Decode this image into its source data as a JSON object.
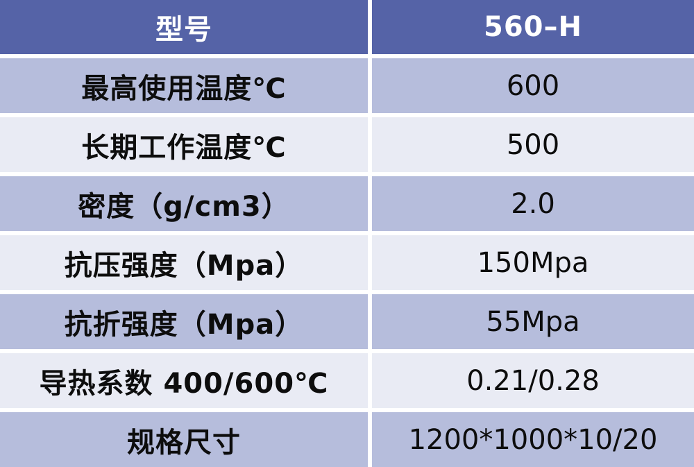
{
  "chart_data": {
    "type": "table",
    "title": "",
    "columns": [
      "型号",
      "560–H"
    ],
    "rows": [
      [
        "最高使用温度℃",
        "600"
      ],
      [
        "长期工作温度℃",
        "500"
      ],
      [
        "密度（g/cm3）",
        "2.0"
      ],
      [
        "抗压强度（Mpa）",
        "150Mpa"
      ],
      [
        "抗折强度（Mpa）",
        "55Mpa"
      ],
      [
        "导热系数 400/600℃",
        "0.21/0.28"
      ],
      [
        "规格尺寸",
        "1200*1000*10/20"
      ]
    ],
    "layout_hints": {
      "header_row": true,
      "zebra_striping": true,
      "separator_lines": "white 6px gutters"
    }
  },
  "table": {
    "header": {
      "label": "型号",
      "value": "560–H"
    },
    "rows": [
      {
        "label": "最高使用温度℃",
        "value": "600"
      },
      {
        "label": "长期工作温度℃",
        "value": "500"
      },
      {
        "label": "密度（g/cm3）",
        "value": "2.0"
      },
      {
        "label": "抗压强度（Mpa）",
        "value": "150Mpa"
      },
      {
        "label": "抗折强度（Mpa）",
        "value": "55Mpa"
      },
      {
        "label": "导热系数 400/600℃",
        "value": "0.21/0.28"
      },
      {
        "label": "规格尺寸",
        "value": "1200*1000*10/20"
      }
    ]
  },
  "colors": {
    "header_bg": "#5563a7",
    "header_text": "#ffffff",
    "row_medium_bg": "#b6bddc",
    "row_light_bg": "#e9ebf4",
    "separator": "#ffffff",
    "body_text": "#0d0d0d"
  }
}
